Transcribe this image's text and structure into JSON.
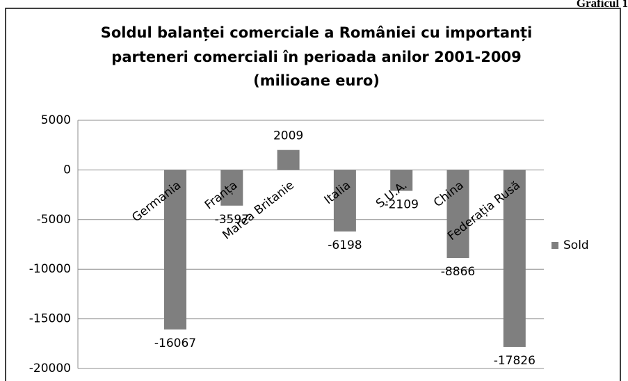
{
  "chart_data": {
    "type": "bar",
    "corner_note": "Graficul 1",
    "title": [
      "Soldul balanței comerciale a României cu importanți",
      "parteneri comerciali în perioada anilor 2001-2009",
      "(milioane euro)"
    ],
    "categories": [
      "Germania",
      "Franța",
      "Marea Britanie",
      "Italia",
      "S.U.A.",
      "China",
      "Federația Rusă"
    ],
    "series": [
      {
        "name": "Sold",
        "color": "#7f7f7f",
        "values": [
          -16067,
          -3597,
          2009,
          -6198,
          -2109,
          -8866,
          -17826
        ]
      }
    ],
    "ylim": [
      -20000,
      5000
    ],
    "yticks": [
      -20000,
      -15000,
      -10000,
      -5000,
      0,
      5000
    ],
    "grid": true,
    "legend": "right"
  }
}
